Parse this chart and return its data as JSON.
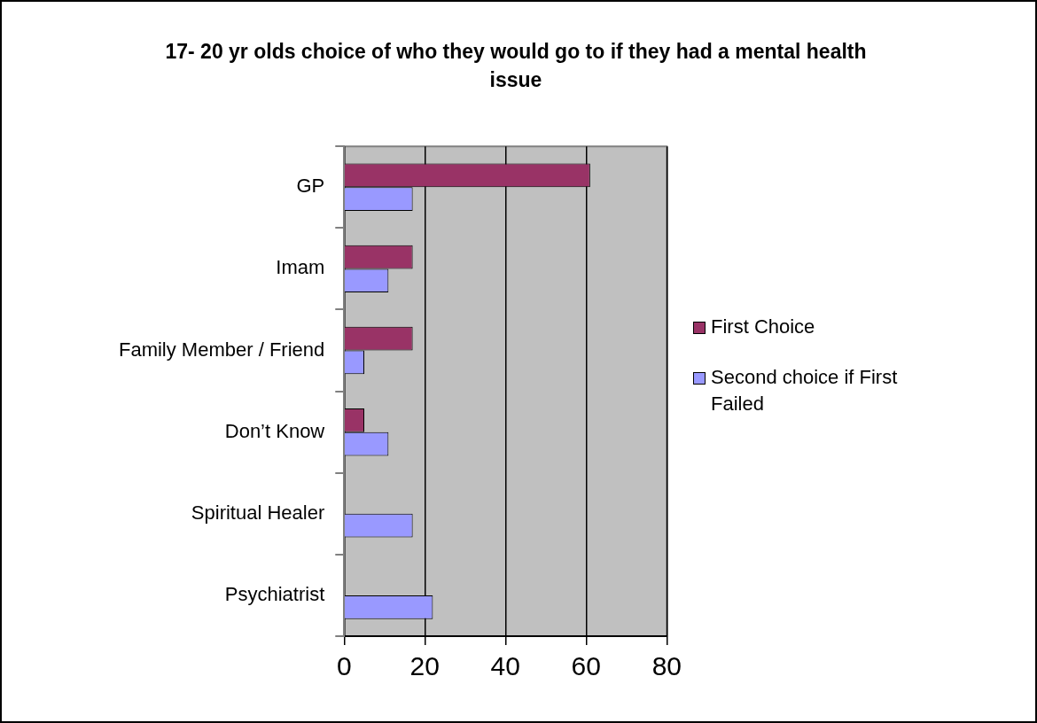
{
  "chart_data": {
    "type": "bar",
    "orientation": "horizontal",
    "title": "17- 20 yr olds choice of who they would go to if they had a mental health issue",
    "categories": [
      "GP",
      "Imam",
      "Family Member / Friend",
      "Don’t Know",
      "Spiritual Healer",
      "Psychiatrist"
    ],
    "series": [
      {
        "name": "First Choice",
        "color": "#993366",
        "values": [
          61,
          17,
          17,
          5,
          0,
          0
        ]
      },
      {
        "name": "Second choice if First Failed",
        "color": "#9999ff",
        "values": [
          17,
          11,
          5,
          11,
          17,
          22
        ]
      }
    ],
    "xlim": [
      0,
      80
    ],
    "xticks": [
      0,
      20,
      40,
      60,
      80
    ],
    "grid": "x",
    "legend": "right"
  }
}
